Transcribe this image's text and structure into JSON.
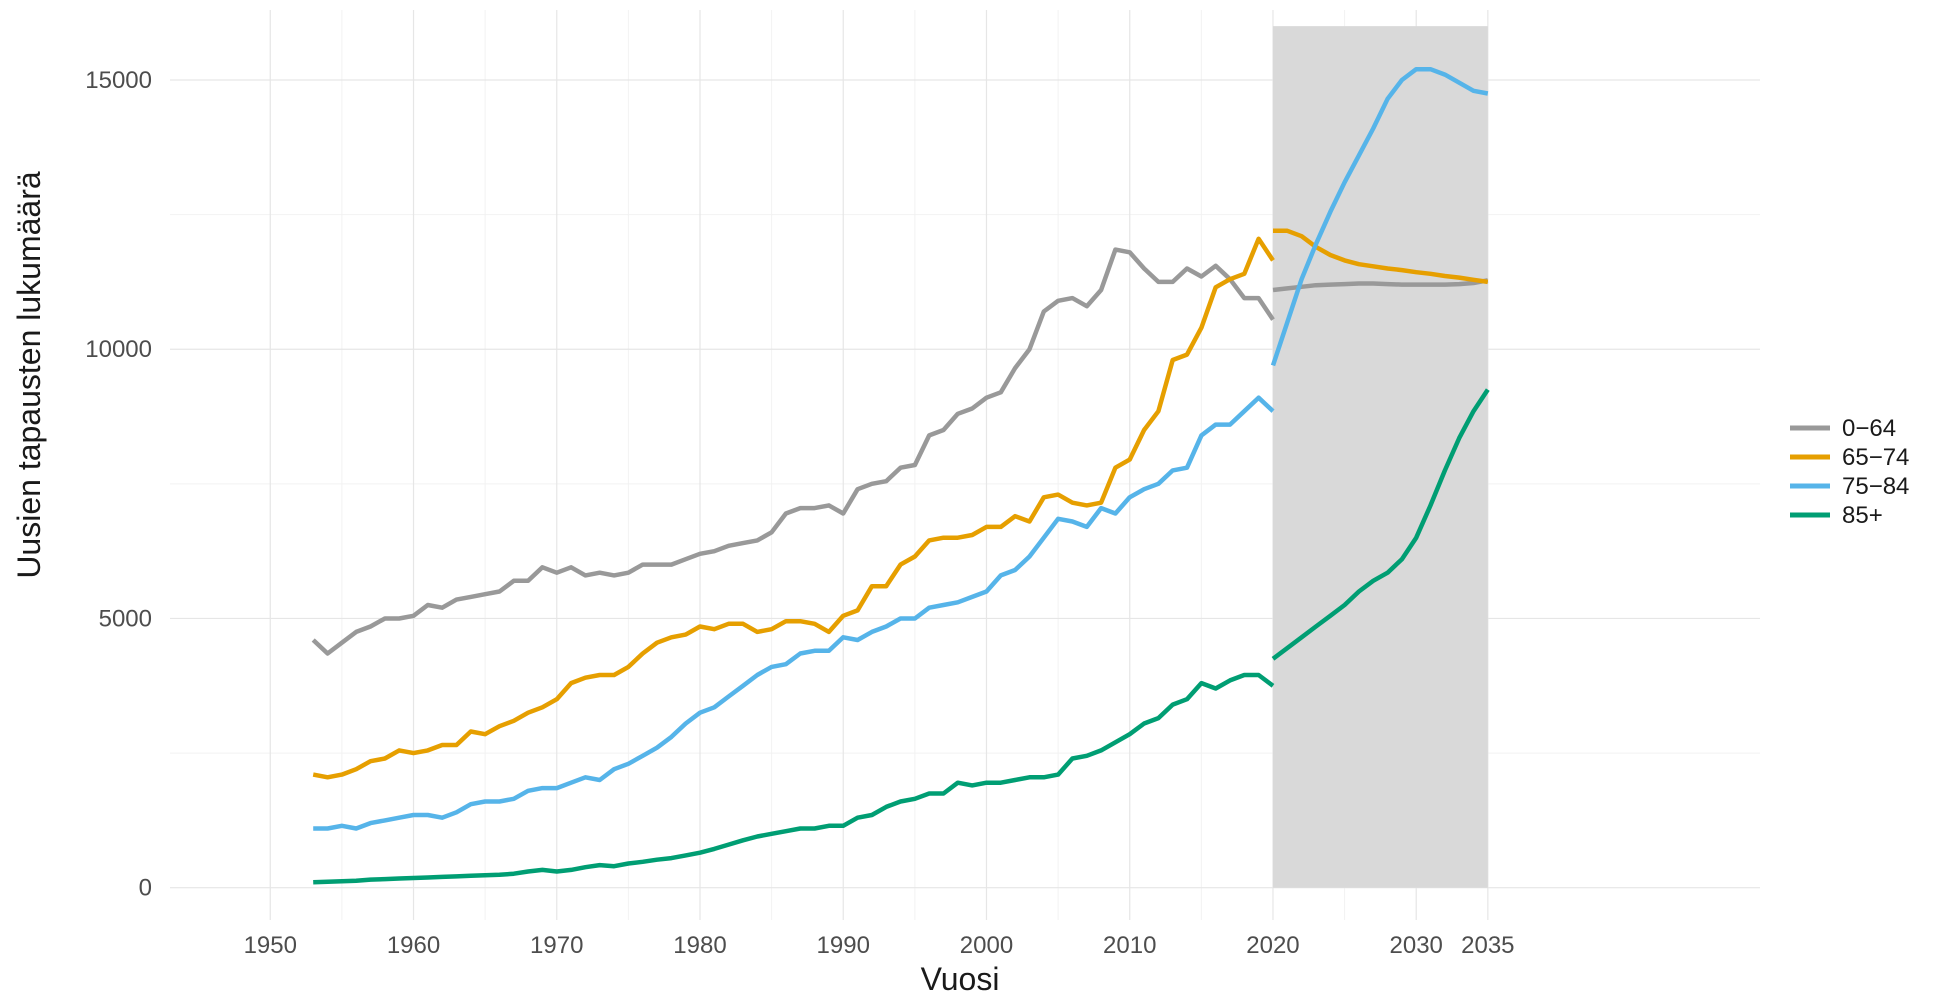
{
  "chart_data": {
    "type": "line",
    "title": "",
    "xlabel": "Vuosi",
    "ylabel": "Uusien tapausten lukumäärä",
    "xlim": [
      1943,
      2054
    ],
    "ylim": [
      -600,
      16300
    ],
    "grid": true,
    "legend_position": "right",
    "x_ticks": [
      1950,
      1960,
      1970,
      1980,
      1990,
      2000,
      2010,
      2020,
      2030,
      2035
    ],
    "x_minor_ticks": [
      1955,
      1965,
      1975,
      1985,
      1995,
      2005,
      2015,
      2025
    ],
    "y_ticks": [
      0,
      5000,
      10000,
      15000
    ],
    "y_minor_ticks": [
      2500,
      7500,
      12500
    ],
    "x_tick_labels": [
      "1950",
      "1960",
      "1970",
      "1980",
      "1990",
      "2000",
      "2010",
      "2020",
      "2030",
      "2035"
    ],
    "y_tick_labels": [
      "0",
      "5000",
      "10000",
      "15000"
    ],
    "forecast_region": {
      "x_start": 2020,
      "x_end": 2035,
      "y_top": 16000,
      "color": "#d9d9d9"
    },
    "series": [
      {
        "name": "0−64",
        "color": "#999999",
        "x": [
          1953,
          1954,
          1955,
          1956,
          1957,
          1958,
          1959,
          1960,
          1961,
          1962,
          1963,
          1964,
          1965,
          1966,
          1967,
          1968,
          1969,
          1970,
          1971,
          1972,
          1973,
          1974,
          1975,
          1976,
          1977,
          1978,
          1979,
          1980,
          1981,
          1982,
          1983,
          1984,
          1985,
          1986,
          1987,
          1988,
          1989,
          1990,
          1991,
          1992,
          1993,
          1994,
          1995,
          1996,
          1997,
          1998,
          1999,
          2000,
          2001,
          2002,
          2003,
          2004,
          2005,
          2006,
          2007,
          2008,
          2009,
          2010,
          2011,
          2012,
          2013,
          2014,
          2015,
          2016,
          2017,
          2018,
          2019,
          2020
        ],
        "y": [
          4600,
          4350,
          4550,
          4750,
          4850,
          5000,
          5000,
          5050,
          5250,
          5200,
          5350,
          5400,
          5450,
          5500,
          5700,
          5700,
          5950,
          5850,
          5950,
          5800,
          5850,
          5800,
          5850,
          6000,
          6000,
          6000,
          6100,
          6200,
          6250,
          6350,
          6400,
          6450,
          6600,
          6950,
          7050,
          7050,
          7100,
          6950,
          7400,
          7500,
          7550,
          7800,
          7850,
          8400,
          8500,
          8800,
          8900,
          9100,
          9200,
          9650,
          10000,
          10700,
          10900,
          10950,
          10800,
          11100,
          11850,
          11800,
          11500,
          11250,
          11250,
          11500,
          11350,
          11550,
          11300,
          10950,
          10950,
          10550
        ]
      },
      {
        "name": "65−74",
        "color": "#e69f00",
        "x": [
          1953,
          1954,
          1955,
          1956,
          1957,
          1958,
          1959,
          1960,
          1961,
          1962,
          1963,
          1964,
          1965,
          1966,
          1967,
          1968,
          1969,
          1970,
          1971,
          1972,
          1973,
          1974,
          1975,
          1976,
          1977,
          1978,
          1979,
          1980,
          1981,
          1982,
          1983,
          1984,
          1985,
          1986,
          1987,
          1988,
          1989,
          1990,
          1991,
          1992,
          1993,
          1994,
          1995,
          1996,
          1997,
          1998,
          1999,
          2000,
          2001,
          2002,
          2003,
          2004,
          2005,
          2006,
          2007,
          2008,
          2009,
          2010,
          2011,
          2012,
          2013,
          2014,
          2015,
          2016,
          2017,
          2018,
          2019,
          2020
        ],
        "y": [
          2100,
          2050,
          2100,
          2200,
          2350,
          2400,
          2550,
          2500,
          2550,
          2650,
          2650,
          2900,
          2850,
          3000,
          3100,
          3250,
          3350,
          3500,
          3800,
          3900,
          3950,
          3950,
          4100,
          4350,
          4550,
          4650,
          4700,
          4850,
          4800,
          4900,
          4900,
          4750,
          4800,
          4950,
          4950,
          4900,
          4750,
          5050,
          5150,
          5600,
          5600,
          6000,
          6150,
          6450,
          6500,
          6500,
          6550,
          6700,
          6700,
          6900,
          6800,
          7250,
          7300,
          7150,
          7100,
          7150,
          7800,
          7950,
          8500,
          8850,
          9800,
          9900,
          10400,
          11150,
          11300,
          11400,
          12050,
          11650
        ]
      },
      {
        "name": "75−84",
        "color": "#56b4e9",
        "x": [
          1953,
          1954,
          1955,
          1956,
          1957,
          1958,
          1959,
          1960,
          1961,
          1962,
          1963,
          1964,
          1965,
          1966,
          1967,
          1968,
          1969,
          1970,
          1971,
          1972,
          1973,
          1974,
          1975,
          1976,
          1977,
          1978,
          1979,
          1980,
          1981,
          1982,
          1983,
          1984,
          1985,
          1986,
          1987,
          1988,
          1989,
          1990,
          1991,
          1992,
          1993,
          1994,
          1995,
          1996,
          1997,
          1998,
          1999,
          2000,
          2001,
          2002,
          2003,
          2004,
          2005,
          2006,
          2007,
          2008,
          2009,
          2010,
          2011,
          2012,
          2013,
          2014,
          2015,
          2016,
          2017,
          2018,
          2019,
          2020
        ],
        "y": [
          1100,
          1100,
          1150,
          1100,
          1200,
          1250,
          1300,
          1350,
          1350,
          1300,
          1400,
          1550,
          1600,
          1600,
          1650,
          1800,
          1850,
          1850,
          1950,
          2050,
          2000,
          2200,
          2300,
          2450,
          2600,
          2800,
          3050,
          3250,
          3350,
          3550,
          3750,
          3950,
          4100,
          4150,
          4350,
          4400,
          4400,
          4650,
          4600,
          4750,
          4850,
          5000,
          5000,
          5200,
          5250,
          5300,
          5400,
          5500,
          5800,
          5900,
          6150,
          6500,
          6850,
          6800,
          6700,
          7050,
          6950,
          7250,
          7400,
          7500,
          7750,
          7800,
          8400,
          8600,
          8600,
          8850,
          9100,
          8850
        ]
      },
      {
        "name": "85+",
        "color": "#009e73",
        "x": [
          1953,
          1954,
          1955,
          1956,
          1957,
          1958,
          1959,
          1960,
          1961,
          1962,
          1963,
          1964,
          1965,
          1966,
          1967,
          1968,
          1969,
          1970,
          1971,
          1972,
          1973,
          1974,
          1975,
          1976,
          1977,
          1978,
          1979,
          1980,
          1981,
          1982,
          1983,
          1984,
          1985,
          1986,
          1987,
          1988,
          1989,
          1990,
          1991,
          1992,
          1993,
          1994,
          1995,
          1996,
          1997,
          1998,
          1999,
          2000,
          2001,
          2002,
          2003,
          2004,
          2005,
          2006,
          2007,
          2008,
          2009,
          2010,
          2011,
          2012,
          2013,
          2014,
          2015,
          2016,
          2017,
          2018,
          2019,
          2020
        ],
        "y": [
          100,
          110,
          120,
          130,
          150,
          160,
          170,
          180,
          190,
          200,
          210,
          220,
          230,
          240,
          260,
          300,
          330,
          300,
          330,
          380,
          420,
          400,
          450,
          480,
          520,
          550,
          600,
          650,
          720,
          800,
          880,
          950,
          1000,
          1050,
          1100,
          1100,
          1150,
          1150,
          1300,
          1350,
          1500,
          1600,
          1650,
          1750,
          1750,
          1950,
          1900,
          1950,
          1950,
          2000,
          2050,
          2050,
          2100,
          2400,
          2450,
          2550,
          2700,
          2850,
          3050,
          3150,
          3400,
          3500,
          3800,
          3700,
          3850,
          3950,
          3950,
          3750
        ]
      },
      {
        "name": "0−64",
        "color": "#999999",
        "x": [
          2020,
          2021,
          2022,
          2023,
          2024,
          2025,
          2026,
          2027,
          2028,
          2029,
          2030,
          2031,
          2032,
          2033,
          2034,
          2035
        ],
        "y": [
          11100,
          11130,
          11160,
          11190,
          11200,
          11210,
          11220,
          11220,
          11210,
          11200,
          11200,
          11200,
          11200,
          11210,
          11230,
          11280
        ]
      },
      {
        "name": "65−74",
        "color": "#e69f00",
        "x": [
          2020,
          2021,
          2022,
          2023,
          2024,
          2025,
          2026,
          2027,
          2028,
          2029,
          2030,
          2031,
          2032,
          2033,
          2034,
          2035
        ],
        "y": [
          12200,
          12200,
          12100,
          11900,
          11750,
          11650,
          11580,
          11540,
          11500,
          11470,
          11430,
          11400,
          11360,
          11330,
          11290,
          11250
        ]
      },
      {
        "name": "75−84",
        "color": "#56b4e9",
        "x": [
          2020,
          2021,
          2022,
          2023,
          2024,
          2025,
          2026,
          2027,
          2028,
          2029,
          2030,
          2031,
          2032,
          2033,
          2034,
          2035
        ],
        "y": [
          9700,
          10500,
          11300,
          11950,
          12550,
          13100,
          13600,
          14100,
          14650,
          15000,
          15200,
          15200,
          15100,
          14950,
          14800,
          14750
        ]
      },
      {
        "name": "85+",
        "color": "#009e73",
        "x": [
          2020,
          2021,
          2022,
          2023,
          2024,
          2025,
          2026,
          2027,
          2028,
          2029,
          2030,
          2031,
          2032,
          2033,
          2034,
          2035
        ],
        "y": [
          4250,
          4450,
          4650,
          4850,
          5050,
          5250,
          5500,
          5700,
          5850,
          6100,
          6500,
          7100,
          7750,
          8350,
          8850,
          9250
        ]
      }
    ],
    "legend": [
      {
        "label": "0−64",
        "color": "#999999"
      },
      {
        "label": "65−74",
        "color": "#e69f00"
      },
      {
        "label": "75−84",
        "color": "#56b4e9"
      },
      {
        "label": "85+",
        "color": "#009e73"
      }
    ]
  }
}
